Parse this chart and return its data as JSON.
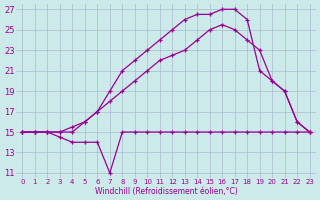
{
  "bg_color": "#cceaea",
  "grid_color": "#aabbcc",
  "line_color": "#990099",
  "xlabel": "Windchill (Refroidissement éolien,°C)",
  "xlim": [
    -0.5,
    23.5
  ],
  "ylim": [
    10.5,
    27.5
  ],
  "xticks": [
    0,
    1,
    2,
    3,
    4,
    5,
    6,
    7,
    8,
    9,
    10,
    11,
    12,
    13,
    14,
    15,
    16,
    17,
    18,
    19,
    20,
    21,
    22,
    23
  ],
  "yticks": [
    11,
    13,
    15,
    17,
    19,
    21,
    23,
    25,
    27
  ],
  "line1_x": [
    0,
    1,
    2,
    3,
    4,
    5,
    6,
    7,
    8,
    9,
    10,
    11,
    12,
    13,
    14,
    15,
    16,
    17,
    18,
    19,
    20,
    21,
    22,
    23
  ],
  "line1_y": [
    15,
    15,
    15,
    14.5,
    14,
    14,
    14,
    11,
    15,
    15,
    15,
    15,
    15,
    15,
    15,
    15,
    15,
    15,
    15,
    15,
    15,
    15,
    15,
    15
  ],
  "line2_x": [
    0,
    1,
    2,
    3,
    4,
    5,
    6,
    7,
    8,
    9,
    10,
    11,
    12,
    13,
    14,
    15,
    16,
    17,
    18,
    19,
    20,
    21,
    22,
    23
  ],
  "line2_y": [
    15,
    15,
    15,
    15,
    15.5,
    16,
    17,
    18,
    19,
    20,
    21,
    22,
    22.5,
    23,
    24,
    25,
    25.5,
    25,
    24,
    23,
    20,
    19,
    16,
    15
  ],
  "line3_x": [
    0,
    1,
    2,
    3,
    4,
    5,
    6,
    7,
    8,
    9,
    10,
    11,
    12,
    13,
    14,
    15,
    16,
    17,
    18,
    19,
    20,
    21,
    22,
    23
  ],
  "line3_y": [
    15,
    15,
    15,
    15,
    15,
    16,
    17,
    19,
    21,
    22,
    23,
    24,
    25,
    26,
    26.5,
    26.5,
    27,
    27,
    26,
    21,
    20,
    19,
    16,
    15
  ]
}
